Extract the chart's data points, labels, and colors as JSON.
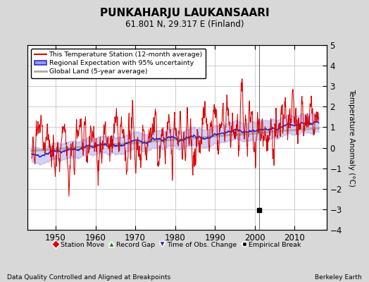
{
  "title": "PUNKAHARJU LAUKANSAARI",
  "subtitle": "61.801 N, 29.317 E (Finland)",
  "ylabel": "Temperature Anomaly (°C)",
  "footer_left": "Data Quality Controlled and Aligned at Breakpoints",
  "footer_right": "Berkeley Earth",
  "xlim": [
    1943,
    2018
  ],
  "ylim": [
    -4,
    5
  ],
  "yticks": [
    -4,
    -3,
    -2,
    -1,
    0,
    1,
    2,
    3,
    4,
    5
  ],
  "xticks": [
    1950,
    1960,
    1970,
    1980,
    1990,
    2000,
    2010
  ],
  "bg_color": "#d8d8d8",
  "plot_bg_color": "#ffffff",
  "grid_color": "#bbbbbb",
  "red_color": "#dd0000",
  "blue_color": "#2222cc",
  "blue_fill_color": "#9999ee",
  "gray_color": "#aaaaaa",
  "empirical_break_x": 2001,
  "empirical_break_y": -3.05,
  "vertical_line_x": 2001
}
